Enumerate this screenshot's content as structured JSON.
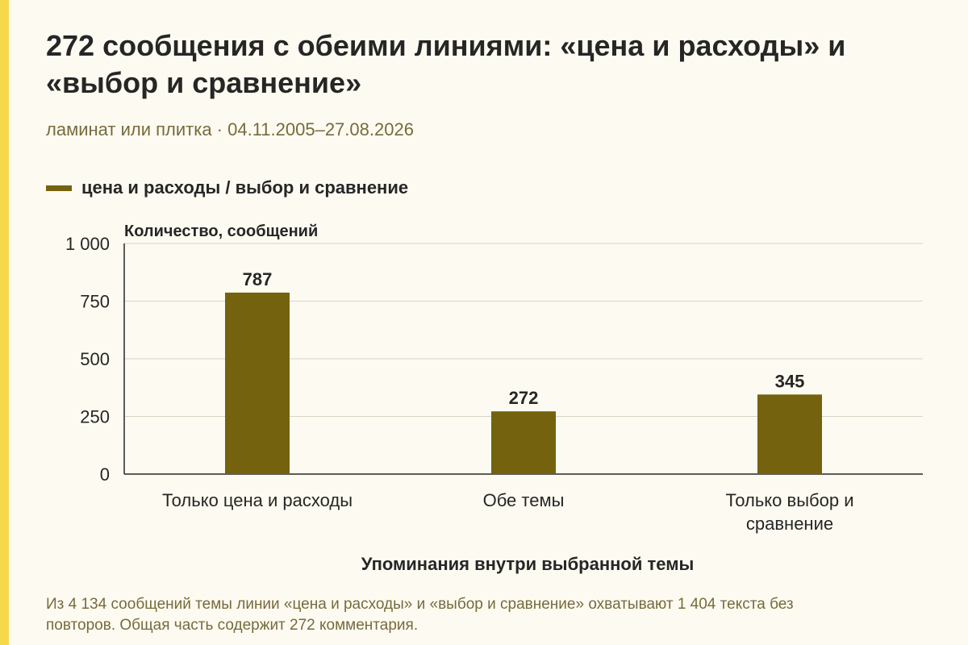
{
  "header": {
    "title": "272 сообщения с обеими линиями: «цена и расходы» и «выбор и сравнение»",
    "subtitle": "ламинат или плитка · 04.11.2005–27.08.2026"
  },
  "legend": {
    "label": "цена и расходы / выбор и сравнение"
  },
  "footnote": "Из 4 134 сообщений темы линии «цена и расходы» и «выбор и сравнение» охватывают 1 404 текста без повторов. Общая часть содержит 272 комментария.",
  "colors": {
    "bar": "#74620e",
    "accent_strip": "#f6d84c",
    "background": "#fdfbf1",
    "gridline": "#d8d4c4",
    "text": "#262626",
    "muted_text": "#776a3c"
  },
  "chart_data": {
    "type": "bar",
    "categories": [
      [
        "Только цена и расходы"
      ],
      [
        "Обе темы"
      ],
      [
        "Только выбор и",
        "сравнение"
      ]
    ],
    "values": [
      787,
      272,
      345
    ],
    "value_labels": [
      "787",
      "272",
      "345"
    ],
    "ylabel": "Количество, сообщений",
    "xlabel": "Упоминания внутри выбранной темы",
    "ylim": [
      0,
      1000
    ],
    "yticks": [
      0,
      250,
      500,
      750,
      1000
    ],
    "ytick_labels": [
      "0",
      "250",
      "500",
      "750",
      "1 000"
    ],
    "grid": true,
    "legend_position": "top-left"
  }
}
